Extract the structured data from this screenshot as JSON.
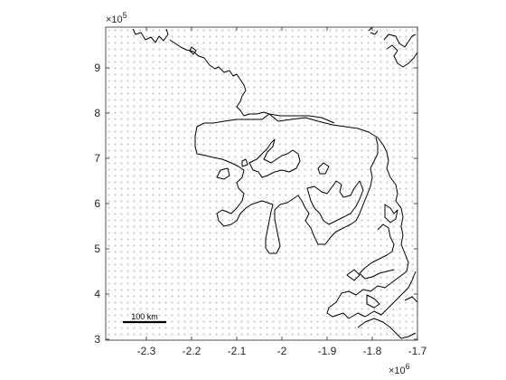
{
  "chart_data": {
    "type": "map",
    "x_ticks": [
      "-2.3",
      "-2.2",
      "-2.1",
      "-2",
      "-1.9",
      "-1.8",
      "-1.7"
    ],
    "x_tick_values": [
      -2.3,
      -2.2,
      -2.1,
      -2.0,
      -1.9,
      -1.8,
      -1.7
    ],
    "x_exponent": {
      "base": "×10",
      "power": "6"
    },
    "y_ticks": [
      "3",
      "4",
      "5",
      "6",
      "7",
      "8",
      "9"
    ],
    "y_tick_values": [
      3,
      4,
      5,
      6,
      7,
      8,
      9
    ],
    "y_exponent": {
      "base": "×10",
      "power": "5"
    },
    "xlim": [
      -2.39,
      -1.7
    ],
    "ylim": [
      2.98,
      9.9
    ],
    "scale_bar_label": "100 km",
    "grid_points": true
  }
}
